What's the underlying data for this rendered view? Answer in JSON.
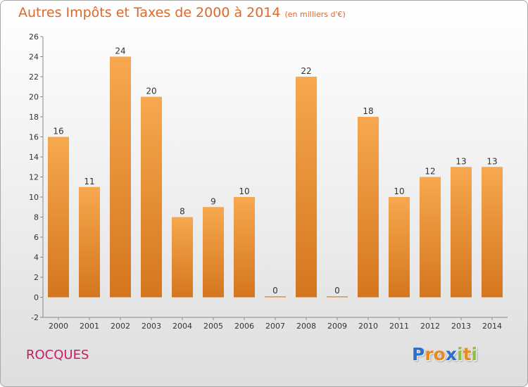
{
  "header": {
    "title": "Autres Impôts et Taxes de 2000 à 2014",
    "unit": "(en milliers d'€)"
  },
  "footer": {
    "commune": "ROCQUES",
    "logo_letters": [
      "P",
      "r",
      "o",
      "x",
      "i",
      "t",
      "i"
    ]
  },
  "colors": {
    "title": "#e0672a",
    "commune": "#c81d60",
    "bar_light": "#f7a84e",
    "bar_dark": "#d4761f",
    "logo": [
      "#2a6fc9",
      "#e98a1b",
      "#e98a1b",
      "#2a6fc9",
      "#8ac43f",
      "#e98a1b",
      "#8ac43f"
    ]
  },
  "chart_data": {
    "type": "bar",
    "title": "Autres Impôts et Taxes de 2000 à 2014",
    "unit": "(en milliers d'€)",
    "categories": [
      "2000",
      "2001",
      "2002",
      "2003",
      "2004",
      "2005",
      "2006",
      "2007",
      "2008",
      "2009",
      "2010",
      "2011",
      "2012",
      "2013",
      "2014"
    ],
    "values": [
      16,
      11,
      24,
      20,
      8,
      9,
      10,
      0,
      22,
      0,
      18,
      10,
      12,
      13,
      13
    ],
    "ylim": [
      -2,
      26
    ],
    "yticks": [
      -2,
      0,
      2,
      4,
      6,
      8,
      10,
      12,
      14,
      16,
      18,
      20,
      22,
      24,
      26
    ],
    "grid": false,
    "legend": "none"
  }
}
